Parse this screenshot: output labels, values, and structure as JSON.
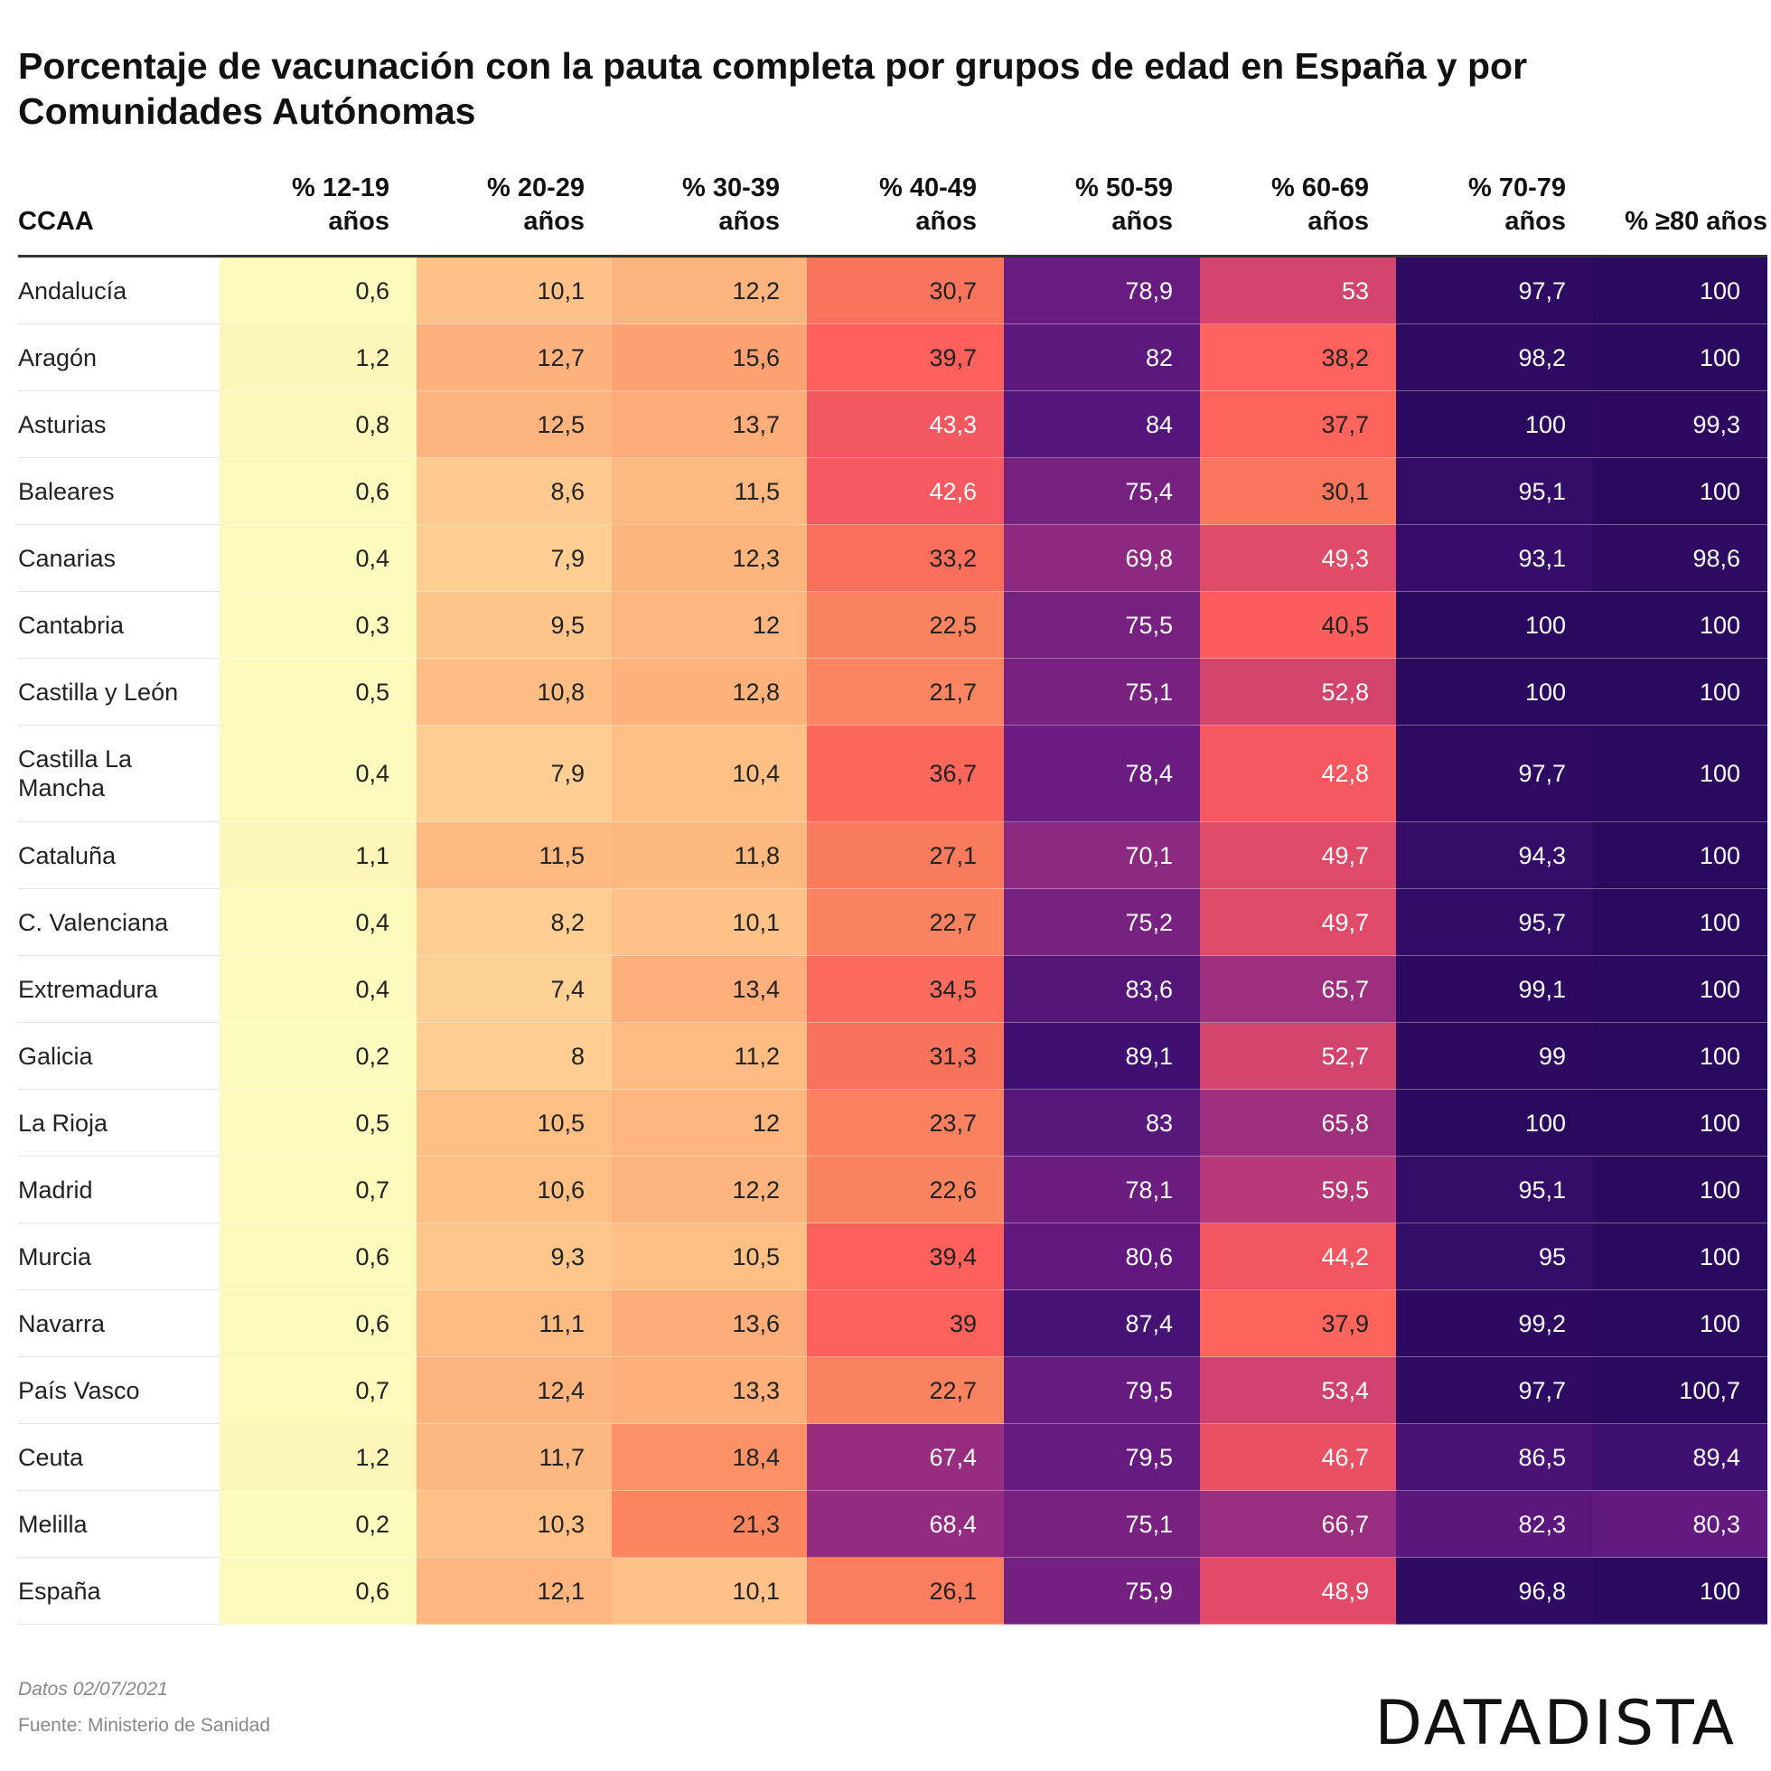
{
  "chart_data": {
    "type": "heatmap",
    "title": "Porcentaje de vacunación con la pauta completa por grupos de edad en España y por Comunidades Autónomas",
    "row_header": "CCAA",
    "columns": [
      [
        "% 12-19",
        "años"
      ],
      [
        "% 20-29",
        "años"
      ],
      [
        "% 30-39",
        "años"
      ],
      [
        "% 40-49",
        "años"
      ],
      [
        "% 50-59",
        "años"
      ],
      [
        "% 60-69",
        "años"
      ],
      [
        "% 70-79",
        "años"
      ],
      [
        "% ≥80 años"
      ]
    ],
    "rows": [
      {
        "name": "Andalucía",
        "values": [
          "0,6",
          "10,1",
          "12,2",
          "30,7",
          "78,9",
          "53",
          "97,7",
          "100"
        ]
      },
      {
        "name": "Aragón",
        "values": [
          "1,2",
          "12,7",
          "15,6",
          "39,7",
          "82",
          "38,2",
          "98,2",
          "100"
        ]
      },
      {
        "name": "Asturias",
        "values": [
          "0,8",
          "12,5",
          "13,7",
          "43,3",
          "84",
          "37,7",
          "100",
          "99,3"
        ]
      },
      {
        "name": "Baleares",
        "values": [
          "0,6",
          "8,6",
          "11,5",
          "42,6",
          "75,4",
          "30,1",
          "95,1",
          "100"
        ]
      },
      {
        "name": "Canarias",
        "values": [
          "0,4",
          "7,9",
          "12,3",
          "33,2",
          "69,8",
          "49,3",
          "93,1",
          "98,6"
        ]
      },
      {
        "name": "Cantabria",
        "values": [
          "0,3",
          "9,5",
          "12",
          "22,5",
          "75,5",
          "40,5",
          "100",
          "100"
        ]
      },
      {
        "name": "Castilla y León",
        "values": [
          "0,5",
          "10,8",
          "12,8",
          "21,7",
          "75,1",
          "52,8",
          "100",
          "100"
        ]
      },
      {
        "name": "Castilla La Mancha",
        "values": [
          "0,4",
          "7,9",
          "10,4",
          "36,7",
          "78,4",
          "42,8",
          "97,7",
          "100"
        ]
      },
      {
        "name": "Cataluña",
        "values": [
          "1,1",
          "11,5",
          "11,8",
          "27,1",
          "70,1",
          "49,7",
          "94,3",
          "100"
        ]
      },
      {
        "name": "C. Valenciana",
        "values": [
          "0,4",
          "8,2",
          "10,1",
          "22,7",
          "75,2",
          "49,7",
          "95,7",
          "100"
        ]
      },
      {
        "name": "Extremadura",
        "values": [
          "0,4",
          "7,4",
          "13,4",
          "34,5",
          "83,6",
          "65,7",
          "99,1",
          "100"
        ]
      },
      {
        "name": "Galicia",
        "values": [
          "0,2",
          "8",
          "11,2",
          "31,3",
          "89,1",
          "52,7",
          "99",
          "100"
        ]
      },
      {
        "name": "La Rioja",
        "values": [
          "0,5",
          "10,5",
          "12",
          "23,7",
          "83",
          "65,8",
          "100",
          "100"
        ]
      },
      {
        "name": "Madrid",
        "values": [
          "0,7",
          "10,6",
          "12,2",
          "22,6",
          "78,1",
          "59,5",
          "95,1",
          "100"
        ]
      },
      {
        "name": "Murcia",
        "values": [
          "0,6",
          "9,3",
          "10,5",
          "39,4",
          "80,6",
          "44,2",
          "95",
          "100"
        ]
      },
      {
        "name": "Navarra",
        "values": [
          "0,6",
          "11,1",
          "13,6",
          "39",
          "87,4",
          "37,9",
          "99,2",
          "100"
        ]
      },
      {
        "name": "País Vasco",
        "values": [
          "0,7",
          "12,4",
          "13,3",
          "22,7",
          "79,5",
          "53,4",
          "97,7",
          "100,7"
        ]
      },
      {
        "name": "Ceuta",
        "values": [
          "1,2",
          "11,7",
          "18,4",
          "67,4",
          "79,5",
          "46,7",
          "86,5",
          "89,4"
        ]
      },
      {
        "name": "Melilla",
        "values": [
          "0,2",
          "10,3",
          "21,3",
          "68,4",
          "75,1",
          "66,7",
          "82,3",
          "80,3"
        ]
      },
      {
        "name": "España",
        "values": [
          "0,6",
          "12,1",
          "10,1",
          "26,1",
          "75,9",
          "48,9",
          "96,8",
          "100"
        ]
      }
    ],
    "color_scale": [
      "#fcfdbf",
      "#fec287",
      "#fb8861",
      "#f8765c",
      "#fe5f5c",
      "#de4968",
      "#b73779",
      "#8c2981",
      "#641a80",
      "#3b0f70",
      "#2a0a5e"
    ]
  },
  "footer": {
    "date_note": "Datos 02/07/2021",
    "source": "Fuente: Ministerio de Sanidad",
    "logo_text": "DATADISTA"
  }
}
